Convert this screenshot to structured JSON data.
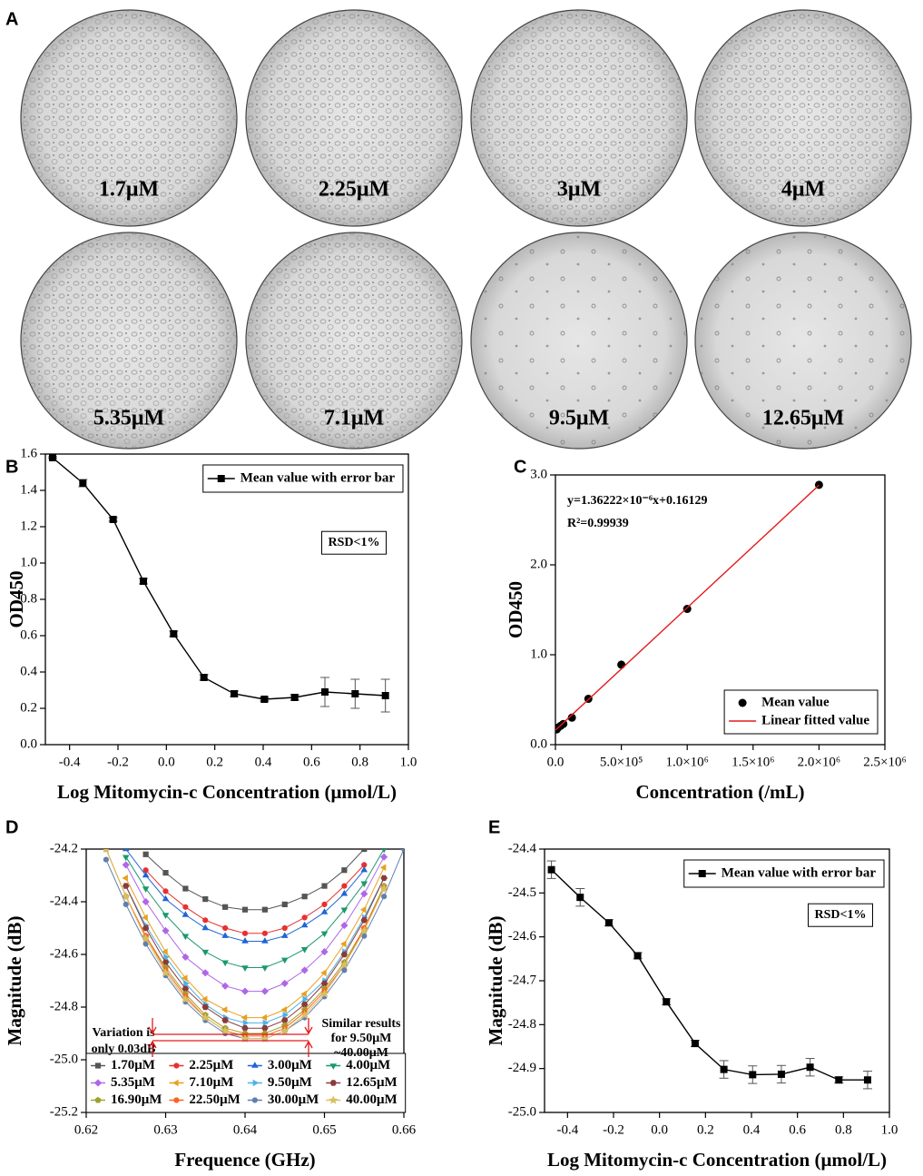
{
  "panel_a": {
    "label": "A",
    "images": [
      "1.7μM",
      "2.25μM",
      "3μM",
      "4μM",
      "5.35μM",
      "7.1μM",
      "9.5μM",
      "12.65μM"
    ]
  },
  "chart_data": [
    {
      "type": "line",
      "panel_label": "B",
      "xlabel": "Log Mitomycin-c Concentration (μmol/L)",
      "ylabel": "OD450",
      "x": [
        -0.47,
        -0.345,
        -0.22,
        -0.095,
        0.03,
        0.155,
        0.28,
        0.405,
        0.53,
        0.655,
        0.78,
        0.905
      ],
      "series": [
        {
          "name": "Mean value with error bar",
          "color": "#000000",
          "marker": "square",
          "style": "line+markers",
          "values": [
            1.58,
            1.44,
            1.24,
            0.9,
            0.61,
            0.37,
            0.28,
            0.25,
            0.26,
            0.29,
            0.28,
            0.27
          ],
          "errors": [
            0.005,
            0.02,
            0.01,
            0.015,
            0.015,
            0.015,
            0.015,
            0.01,
            0.015,
            0.08,
            0.08,
            0.09
          ]
        }
      ],
      "xlim": [
        -0.5,
        1.0
      ],
      "xticks": [
        -0.4,
        -0.2,
        {
          "value": 0,
          "label": "0.0"
        },
        0.2,
        0.4,
        0.6,
        0.8,
        {
          "value": 1,
          "label": "1.0"
        }
      ],
      "ylim": [
        0,
        1.6
      ],
      "yticks": [
        {
          "value": 0,
          "label": "0.0"
        },
        0.2,
        0.4,
        0.6,
        0.8,
        {
          "value": 1,
          "label": "1.0"
        },
        1.2,
        1.4,
        1.6
      ],
      "legend": "upper right",
      "annotations": [
        "RSD<1%"
      ]
    },
    {
      "type": "scatter",
      "panel_label": "C",
      "xlabel": "Concentration (/mL)",
      "ylabel": "OD450",
      "series": [
        {
          "name": "Mean value",
          "color": "#000000",
          "marker": "circle",
          "style": "markers",
          "x": [
            10000,
            20000,
            40000,
            60000,
            125000,
            250000,
            500000,
            1000000,
            2000000
          ],
          "values": [
            0.17,
            0.19,
            0.21,
            0.23,
            0.3,
            0.51,
            0.89,
            1.51,
            2.89
          ]
        },
        {
          "name": "Linear fitted value",
          "color": "#e31a1c",
          "style": "line",
          "x": [
            0,
            2000000
          ],
          "values": [
            0.161,
            2.886
          ]
        }
      ],
      "xlim": [
        0,
        2500000
      ],
      "xticks": [
        {
          "value": 0,
          "label": "0.0"
        },
        {
          "value": 500000,
          "label": "5.0×10⁵"
        },
        {
          "value": 1000000,
          "label": "1.0×10⁶"
        },
        {
          "value": 1500000,
          "label": "1.5×10⁶"
        },
        {
          "value": 2000000,
          "label": "2.0×10⁶"
        },
        {
          "value": 2500000,
          "label": "2.5×10⁶"
        }
      ],
      "ylim": [
        0,
        3
      ],
      "yticks": [
        {
          "value": 0,
          "label": "0.0"
        },
        {
          "value": 1,
          "label": "1.0"
        },
        {
          "value": 2,
          "label": "2.0"
        },
        {
          "value": 3,
          "label": "3.0"
        }
      ],
      "legend": "lower right",
      "annotations": [
        "y=1.36222×10⁻⁶x+0.16129",
        "R²=0.99939"
      ]
    },
    {
      "type": "line",
      "panel_label": "D",
      "xlabel": "Frequence (GHz)",
      "ylabel": "Magnitude (dB)",
      "x": [
        0.62,
        0.6225,
        0.625,
        0.6275,
        0.63,
        0.6325,
        0.635,
        0.6375,
        0.64,
        0.6425,
        0.645,
        0.6475,
        0.65,
        0.6525,
        0.655,
        0.6575,
        0.66
      ],
      "series": [
        {
          "name": "1.70μM",
          "color": "#555555",
          "marker": "square",
          "values": [
            null,
            null,
            null,
            -24.22,
            -24.29,
            -24.35,
            -24.39,
            -24.42,
            -24.43,
            -24.43,
            -24.41,
            -24.38,
            -24.34,
            -24.28,
            -24.2,
            null,
            null
          ]
        },
        {
          "name": "2.25μM",
          "color": "#e8312f",
          "marker": "circle",
          "values": [
            null,
            null,
            null,
            -24.28,
            -24.36,
            -24.42,
            -24.47,
            -24.5,
            -24.52,
            -24.52,
            -24.5,
            -24.46,
            -24.41,
            -24.34,
            -24.26,
            null,
            null
          ]
        },
        {
          "name": "3.00μM",
          "color": "#1f66d6",
          "marker": "triangle",
          "values": [
            null,
            null,
            -24.2,
            -24.3,
            -24.39,
            -24.45,
            -24.5,
            -24.53,
            -24.55,
            -24.55,
            -24.53,
            -24.49,
            -24.44,
            -24.37,
            -24.28,
            null,
            null
          ]
        },
        {
          "name": "4.00μM",
          "color": "#1a9a6a",
          "marker": "triangle-down",
          "values": [
            null,
            null,
            -24.23,
            -24.35,
            -24.45,
            -24.53,
            -24.59,
            -24.63,
            -24.65,
            -24.65,
            -24.62,
            -24.58,
            -24.52,
            -24.43,
            -24.33,
            -24.2,
            null
          ]
        },
        {
          "name": "5.35μM",
          "color": "#b066e8",
          "marker": "diamond",
          "values": [
            null,
            null,
            -24.26,
            -24.4,
            -24.51,
            -24.61,
            -24.67,
            -24.72,
            -24.74,
            -24.74,
            -24.71,
            -24.66,
            -24.59,
            -24.49,
            -24.37,
            -24.23,
            null
          ]
        },
        {
          "name": "7.10μM",
          "color": "#e8a020",
          "marker": "triangle-left",
          "values": [
            null,
            null,
            -24.31,
            -24.46,
            -24.59,
            -24.69,
            -24.77,
            -24.81,
            -24.84,
            -24.84,
            -24.81,
            -24.75,
            -24.67,
            -24.56,
            -24.43,
            -24.27,
            null
          ]
        },
        {
          "name": "9.50μM",
          "color": "#4bb3e8",
          "marker": "triangle-right",
          "values": [
            null,
            null,
            -24.34,
            -24.49,
            -24.61,
            -24.71,
            -24.79,
            -24.84,
            -24.86,
            -24.86,
            -24.83,
            -24.77,
            -24.7,
            -24.59,
            -24.46,
            -24.31,
            null
          ]
        },
        {
          "name": "12.65μM",
          "color": "#8b3a3a",
          "marker": "hexagon",
          "values": [
            null,
            null,
            -24.34,
            -24.5,
            -24.63,
            -24.73,
            -24.8,
            -24.85,
            -24.88,
            -24.88,
            -24.85,
            -24.79,
            -24.71,
            -24.6,
            -24.47,
            -24.31,
            null
          ]
        },
        {
          "name": "16.90μM",
          "color": "#a0a030",
          "marker": "pentagon",
          "values": [
            null,
            -24.2,
            -24.38,
            -24.53,
            -24.65,
            -24.75,
            -24.83,
            -24.88,
            -24.9,
            -24.9,
            -24.87,
            -24.81,
            -24.73,
            -24.63,
            -24.5,
            -24.34,
            null
          ]
        },
        {
          "name": "22.50μM",
          "color": "#ff6020",
          "marker": "circle",
          "values": [
            null,
            -24.2,
            -24.38,
            -24.53,
            -24.66,
            -24.76,
            -24.84,
            -24.89,
            -24.91,
            -24.91,
            -24.88,
            -24.82,
            -24.74,
            -24.64,
            -24.5,
            -24.35,
            null
          ]
        },
        {
          "name": "30.00μM",
          "color": "#5f80b0",
          "marker": "circle",
          "values": [
            null,
            -24.24,
            -24.41,
            -24.56,
            -24.68,
            -24.78,
            -24.85,
            -24.9,
            -24.92,
            -24.92,
            -24.89,
            -24.84,
            -24.76,
            -24.66,
            -24.53,
            -24.38,
            -24.2
          ]
        },
        {
          "name": "40.00μM",
          "color": "#d8c060",
          "marker": "star",
          "values": [
            null,
            -24.2,
            -24.38,
            -24.54,
            -24.67,
            -24.77,
            -24.84,
            -24.89,
            -24.92,
            -24.92,
            -24.89,
            -24.83,
            -24.75,
            -24.64,
            -24.51,
            -24.35,
            null
          ]
        }
      ],
      "xlim": [
        0.62,
        0.66
      ],
      "xticks": [
        0.62,
        0.63,
        0.64,
        0.65,
        0.66
      ],
      "ylim": [
        -25.2,
        -24.2
      ],
      "yticks": [
        -25.2,
        {
          "value": -25,
          "label": "-25.0"
        },
        -24.8,
        -24.6,
        -24.4,
        -24.2
      ],
      "legend": "lower left",
      "legend_columns": 4,
      "annotations": [
        "Variation is",
        "only 0.03dB",
        "Similar results",
        "for 9.50μM",
        "~40.00μM"
      ]
    },
    {
      "type": "line",
      "panel_label": "E",
      "xlabel": "Log Mitomycin-c Concentration (μmol/L)",
      "ylabel": "Magnitude (dB)",
      "x": [
        -0.47,
        -0.345,
        -0.22,
        -0.095,
        0.03,
        0.155,
        0.28,
        0.405,
        0.53,
        0.655,
        0.78,
        0.905
      ],
      "series": [
        {
          "name": "Mean value with error bar",
          "color": "#000000",
          "marker": "square",
          "style": "line+markers",
          "values": [
            -24.447,
            -24.51,
            -24.568,
            -24.643,
            -24.748,
            -24.843,
            -24.902,
            -24.914,
            -24.913,
            -24.897,
            -24.926,
            -24.926
          ],
          "errors": [
            0.02,
            0.02,
            0.007,
            0.007,
            0.007,
            0.007,
            0.02,
            0.02,
            0.02,
            0.02,
            0.007,
            0.02
          ]
        }
      ],
      "xlim": [
        -0.5,
        1.0
      ],
      "xticks": [
        -0.4,
        -0.2,
        {
          "value": 0,
          "label": "0.0"
        },
        0.2,
        0.4,
        0.6,
        0.8,
        {
          "value": 1,
          "label": "1.0"
        }
      ],
      "ylim": [
        -25.0,
        -24.4
      ],
      "yticks": [
        {
          "value": -25,
          "label": "-25.0"
        },
        -24.9,
        -24.8,
        -24.7,
        -24.6,
        -24.5,
        -24.4
      ],
      "legend": "upper right",
      "annotations": [
        "RSD<1%"
      ]
    }
  ]
}
